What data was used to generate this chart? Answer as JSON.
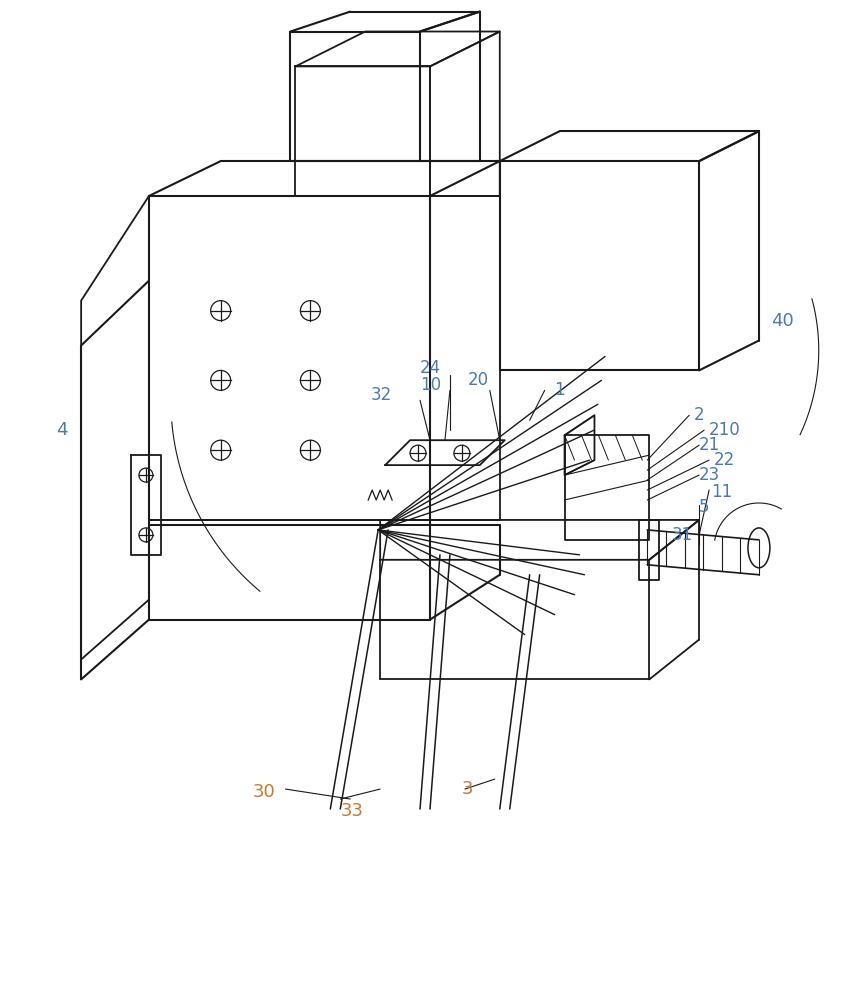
{
  "bg_color": "#ffffff",
  "line_color": "#1a1a1a",
  "label_blue": "#4a7ab5",
  "label_orange": "#c87832",
  "figsize": [
    8.59,
    10.0
  ],
  "dpi": 100
}
